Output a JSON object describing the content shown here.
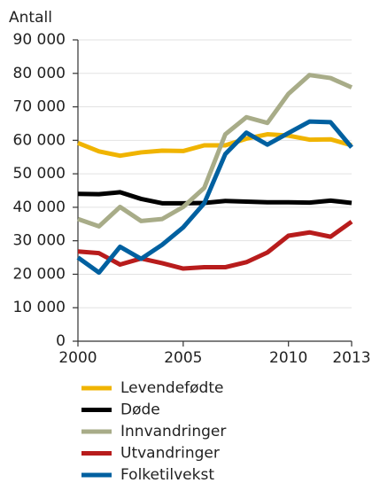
{
  "chart_data": {
    "type": "line",
    "y_axis_label": "Antall",
    "x": [
      2000,
      2001,
      2002,
      2003,
      2004,
      2005,
      2006,
      2007,
      2008,
      2009,
      2010,
      2011,
      2012,
      2013
    ],
    "xlim": [
      2000,
      2013
    ],
    "xticks": [
      2000,
      2005,
      2010,
      2013
    ],
    "ylim": [
      0,
      90000
    ],
    "yticks": [
      0,
      {
        "value": 10000,
        "label": "10 000"
      },
      {
        "value": 20000,
        "label": "20 000"
      },
      {
        "value": 30000,
        "label": "30 000"
      },
      {
        "value": 40000,
        "label": "40 000"
      },
      {
        "value": 50000,
        "label": "50 000"
      },
      {
        "value": 60000,
        "label": "60 000"
      },
      {
        "value": 70000,
        "label": "70 000"
      },
      {
        "value": 80000,
        "label": "80 000"
      },
      {
        "value": 90000,
        "label": "90 000"
      }
    ],
    "grid": true,
    "legend": "bottom",
    "series": [
      {
        "name": "Levendefødte",
        "color": "#f0b400",
        "values": [
          59200,
          56700,
          55400,
          56400,
          56900,
          56800,
          58500,
          58500,
          60500,
          61800,
          61400,
          60200,
          60300,
          58500
        ]
      },
      {
        "name": "Døde",
        "color": "#000000",
        "values": [
          44000,
          43900,
          44500,
          42500,
          41200,
          41200,
          41300,
          41900,
          41700,
          41500,
          41500,
          41400,
          42000,
          41300
        ]
      },
      {
        "name": "Innvandringer",
        "color": "#a8ac88",
        "values": [
          36500,
          34300,
          40100,
          35900,
          36500,
          40100,
          45800,
          61800,
          66900,
          65200,
          73900,
          79500,
          78600,
          75800
        ]
      },
      {
        "name": "Utvandringer",
        "color": "#b81c1c",
        "values": [
          26800,
          26300,
          22900,
          24700,
          23300,
          21700,
          22100,
          22100,
          23600,
          26500,
          31500,
          32500,
          31200,
          35700
        ]
      },
      {
        "name": "Folketilvekst",
        "color": "#0060a0",
        "values": [
          25000,
          20500,
          28200,
          24600,
          28800,
          34000,
          41200,
          55900,
          62300,
          58700,
          62200,
          65600,
          65400,
          57900
        ]
      }
    ]
  }
}
